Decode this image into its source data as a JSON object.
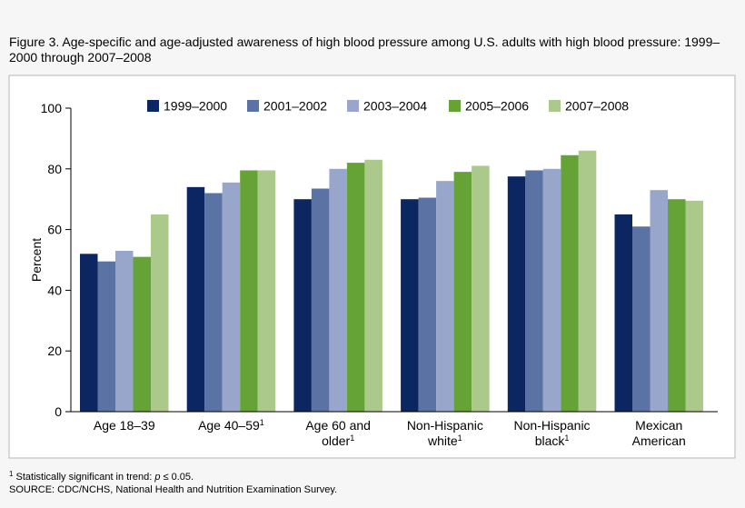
{
  "figure": {
    "title": "Figure 3. Age-specific and age-adjusted awareness of high blood pressure among U.S. adults with high blood pressure: 1999–2000 through 2007–2008",
    "footnote_marker": "1",
    "footnote_text": " Statistically significant in trend: ",
    "footnote_formula": "p",
    "footnote_tail": " ≤ 0.05.",
    "source": "SOURCE: CDC/NCHS, National Health and Nutrition Examination Survey."
  },
  "chart_data": {
    "type": "bar",
    "title": "",
    "xlabel": "",
    "ylabel": "Percent",
    "ylim": [
      0,
      100
    ],
    "yticks": [
      0,
      20,
      40,
      60,
      80,
      100
    ],
    "grid": false,
    "legend_position": "top",
    "categories": [
      {
        "lines": [
          "Age 18–39"
        ],
        "sup": ""
      },
      {
        "lines": [
          "Age 40–59"
        ],
        "sup": "1"
      },
      {
        "lines": [
          "Age 60 and",
          "older"
        ],
        "sup": "1"
      },
      {
        "lines": [
          "Non-Hispanic",
          "white"
        ],
        "sup": "1"
      },
      {
        "lines": [
          "Non-Hispanic",
          "black"
        ],
        "sup": "1"
      },
      {
        "lines": [
          "Mexican",
          "American"
        ],
        "sup": ""
      }
    ],
    "series": [
      {
        "name": "1999–2000",
        "color": "#0b2660",
        "values": [
          52,
          74,
          70,
          70,
          77.5,
          65
        ]
      },
      {
        "name": "2001–2002",
        "color": "#5a72a4",
        "values": [
          49.5,
          72,
          73.5,
          70.5,
          79.5,
          61
        ]
      },
      {
        "name": "2003–2004",
        "color": "#98a6cc",
        "values": [
          53,
          75.5,
          80,
          76,
          80,
          73
        ]
      },
      {
        "name": "2005–2006",
        "color": "#65a336",
        "values": [
          51,
          79.5,
          82,
          79,
          84.5,
          70
        ]
      },
      {
        "name": "2007–2008",
        "color": "#abc98a",
        "values": [
          65,
          79.5,
          83,
          81,
          86,
          69.5
        ]
      }
    ]
  }
}
